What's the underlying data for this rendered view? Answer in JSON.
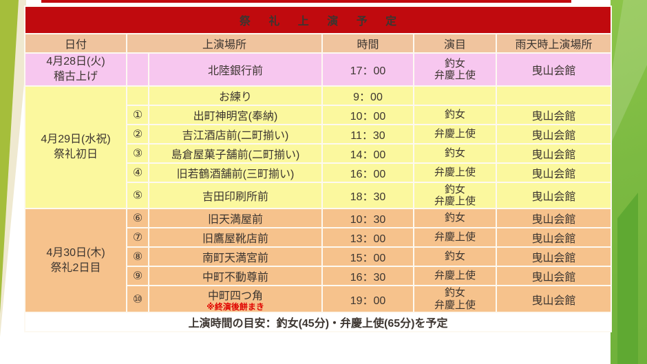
{
  "title": "祭 礼 上 演 予 定",
  "table": {
    "columns": [
      "日付",
      "上演場所",
      "時間",
      "演目",
      "雨天時上演場所"
    ],
    "sections": [
      {
        "date_line1": "4月28日(火)",
        "date_line2": "稽古上げ",
        "color": "pink",
        "rows": [
          {
            "num": "",
            "place": "北陸銀行前",
            "time": "17：00",
            "program": [
              "釣女",
              "弁慶上使"
            ],
            "rain": "曳山会館",
            "tall": true
          }
        ]
      },
      {
        "date_line1": "4月29日(水祝)",
        "date_line2": "祭礼初日",
        "color": "yellow",
        "rows": [
          {
            "num": "",
            "place": "お練り",
            "time": "9：00",
            "program": [],
            "rain": ""
          },
          {
            "num": "①",
            "place": "出町神明宮(奉納)",
            "time": "10：00",
            "program": [
              "釣女"
            ],
            "rain": "曳山会館"
          },
          {
            "num": "②",
            "place": "吉江酒店前(二町揃い)",
            "time": "11：30",
            "program": [
              "弁慶上使"
            ],
            "rain": "曳山会館"
          },
          {
            "num": "③",
            "place": "島倉屋菓子舗前(二町揃い)",
            "time": "14：00",
            "program": [
              "釣女"
            ],
            "rain": "曳山会館"
          },
          {
            "num": "④",
            "place": "旧若鶴酒舗前(三町揃い)",
            "time": "16：00",
            "program": [
              "弁慶上使"
            ],
            "rain": "曳山会館"
          },
          {
            "num": "⑤",
            "place": "吉田印刷所前",
            "time": "18：30",
            "program": [
              "釣女",
              "弁慶上使"
            ],
            "rain": "曳山会館",
            "tall": true
          }
        ]
      },
      {
        "date_line1": "4月30日(木)",
        "date_line2": "祭礼2日目",
        "color": "orange",
        "rows": [
          {
            "num": "⑥",
            "place": "旧天満屋前",
            "time": "10：30",
            "program": [
              "釣女"
            ],
            "rain": "曳山会館"
          },
          {
            "num": "⑦",
            "place": "旧鷹屋靴店前",
            "time": "13：00",
            "program": [
              "弁慶上使"
            ],
            "rain": "曳山会館"
          },
          {
            "num": "⑧",
            "place": "南町天満宮前",
            "time": "15：00",
            "program": [
              "釣女"
            ],
            "rain": "曳山会館"
          },
          {
            "num": "⑨",
            "place": "中町不動尊前",
            "time": "16：30",
            "program": [
              "弁慶上使"
            ],
            "rain": "曳山会館"
          },
          {
            "num": "⑩",
            "place": "中町四つ角",
            "place_note": "※終演後餅まき",
            "time": "19：00",
            "program": [
              "釣女",
              "弁慶上使"
            ],
            "rain": "曳山会館",
            "tall": true
          }
        ]
      }
    ]
  },
  "footer_note": "上演時間の目安：釣女(45分)・弁慶上使(65分)を予定",
  "colors": {
    "title_bar": "#c00a0e",
    "header_row": "#f0c49e",
    "section_day1": "#f7c7ef",
    "section_day2": "#fbf89e",
    "section_day3": "#f6c28c",
    "note_red": "#e00500",
    "bg_green_left": "#a5be3b",
    "bg_green_right": "#7cba42",
    "bg_green_dark": "#5fa932",
    "bg_cream": "#efe9d0"
  }
}
